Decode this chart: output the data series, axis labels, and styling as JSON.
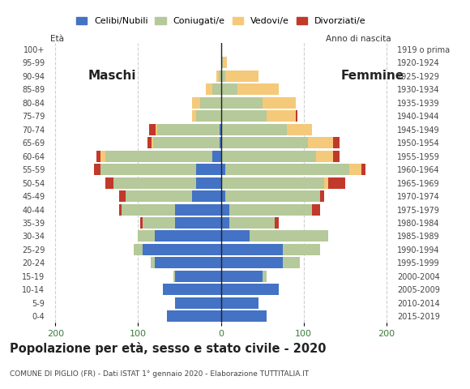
{
  "age_groups": [
    "0-4",
    "5-9",
    "10-14",
    "15-19",
    "20-24",
    "25-29",
    "30-34",
    "35-39",
    "40-44",
    "45-49",
    "50-54",
    "55-59",
    "60-64",
    "65-69",
    "70-74",
    "75-79",
    "80-84",
    "85-89",
    "90-94",
    "95-99",
    "100+"
  ],
  "birth_years": [
    "2015-2019",
    "2010-2014",
    "2005-2009",
    "2000-2004",
    "1995-1999",
    "1990-1994",
    "1985-1989",
    "1980-1984",
    "1975-1979",
    "1970-1974",
    "1965-1969",
    "1960-1964",
    "1955-1959",
    "1950-1954",
    "1945-1949",
    "1940-1944",
    "1935-1939",
    "1930-1934",
    "1925-1929",
    "1920-1924",
    "1919 o prima"
  ],
  "males": {
    "celibe": [
      65,
      55,
      70,
      55,
      80,
      95,
      80,
      55,
      55,
      35,
      30,
      30,
      10,
      2,
      2,
      0,
      0,
      0,
      0,
      0,
      0
    ],
    "coniugato": [
      0,
      0,
      0,
      2,
      5,
      10,
      20,
      40,
      65,
      80,
      100,
      115,
      130,
      80,
      75,
      30,
      25,
      10,
      3,
      0,
      0
    ],
    "vedovo": [
      0,
      0,
      0,
      0,
      0,
      0,
      0,
      0,
      0,
      0,
      0,
      0,
      5,
      2,
      2,
      5,
      10,
      8,
      2,
      0,
      0
    ],
    "divorziato": [
      0,
      0,
      0,
      0,
      0,
      0,
      0,
      2,
      3,
      8,
      10,
      8,
      5,
      5,
      8,
      0,
      0,
      0,
      0,
      0,
      0
    ]
  },
  "females": {
    "celibe": [
      55,
      45,
      70,
      50,
      75,
      75,
      35,
      10,
      10,
      5,
      0,
      5,
      0,
      0,
      0,
      0,
      0,
      0,
      0,
      0,
      0
    ],
    "coniugato": [
      0,
      0,
      0,
      5,
      20,
      45,
      95,
      55,
      100,
      115,
      125,
      150,
      115,
      105,
      80,
      55,
      50,
      20,
      5,
      2,
      0
    ],
    "vedovo": [
      0,
      0,
      0,
      0,
      0,
      0,
      0,
      0,
      0,
      0,
      5,
      15,
      20,
      30,
      30,
      35,
      40,
      50,
      40,
      5,
      0
    ],
    "divorziato": [
      0,
      0,
      0,
      0,
      0,
      0,
      0,
      5,
      10,
      5,
      20,
      5,
      8,
      8,
      0,
      2,
      0,
      0,
      0,
      0,
      0
    ]
  },
  "colors": {
    "celibe": "#4472c4",
    "coniugato": "#b5c99a",
    "vedovo": "#f5c97a",
    "divorziato": "#c0392b"
  },
  "xlim": 210,
  "title": "Popolazione per età, sesso e stato civile - 2020",
  "subtitle": "COMUNE DI PIGLIO (FR) - Dati ISTAT 1° gennaio 2020 - Elaborazione TUTTITALIA.IT",
  "ylabel_left": "Età",
  "ylabel_right": "Anno di nascita",
  "label_maschi": "Maschi",
  "label_femmine": "Femmine",
  "legend_labels": [
    "Celibi/Nubili",
    "Coniugati/e",
    "Vedovi/e",
    "Divorziati/e"
  ],
  "background_color": "#ffffff",
  "grid_color": "#bbbbbb"
}
